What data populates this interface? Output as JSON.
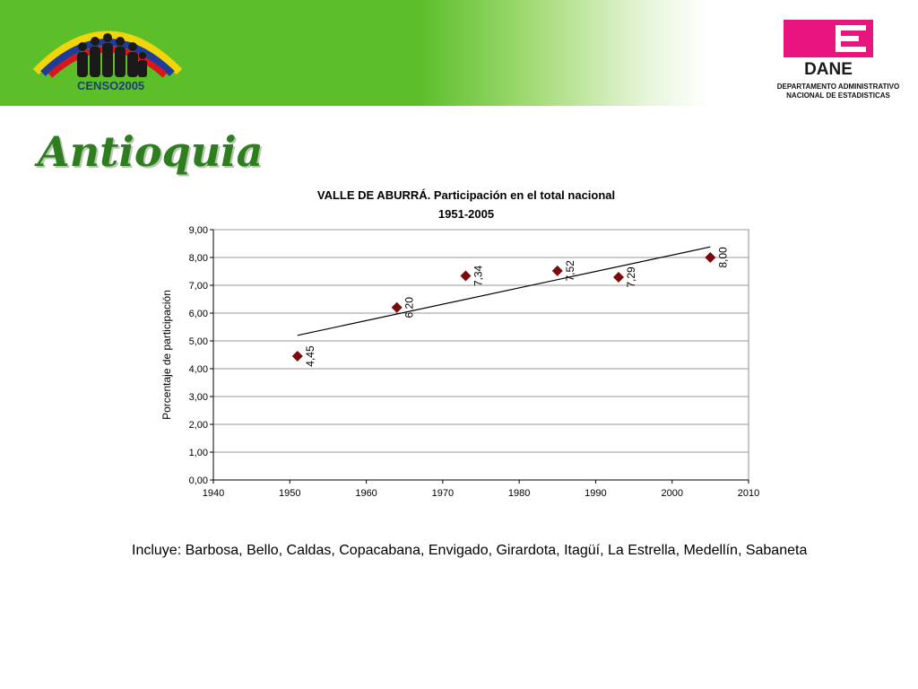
{
  "header": {
    "censo_logo_text": "CENSO2005",
    "dane_logo_text": "DANE",
    "dane_subtitle_line1": "DEPARTAMENTO ADMINISTRATIVO",
    "dane_subtitle_line2": "NACIONAL DE ESTADISTICAS"
  },
  "slide_title": "Antioquia",
  "chart_data": {
    "type": "scatter",
    "title": "VALLE DE ABURRÁ. Participación en el total nacional",
    "subtitle": "1951-2005",
    "xlabel": "",
    "ylabel": "Porcentaje de participación",
    "xlim": [
      1940,
      2010
    ],
    "ylim": [
      0,
      9
    ],
    "x_ticks": [
      "1940",
      "1950",
      "1960",
      "1970",
      "1980",
      "1990",
      "2000",
      "2010"
    ],
    "y_ticks": [
      "0,00",
      "1,00",
      "2,00",
      "3,00",
      "4,00",
      "5,00",
      "6,00",
      "7,00",
      "8,00",
      "9,00"
    ],
    "grid": "horizontal",
    "series": [
      {
        "points": [
          {
            "x": 1951,
            "y": 4.45,
            "label": "4,45"
          },
          {
            "x": 1964,
            "y": 6.2,
            "label": "6,20"
          },
          {
            "x": 1973,
            "y": 7.34,
            "label": "7,34"
          },
          {
            "x": 1985,
            "y": 7.52,
            "label": "7,52"
          },
          {
            "x": 1993,
            "y": 7.29,
            "label": "7,29"
          },
          {
            "x": 2005,
            "y": 8.0,
            "label": "8,00"
          }
        ],
        "color": "#7b0a0a",
        "marker": "diamond"
      }
    ],
    "trendline": {
      "x": [
        1951,
        2005
      ],
      "y": [
        5.2,
        8.38
      ],
      "color": "#000000"
    }
  },
  "note": "Incluye: Barbosa, Bello, Caldas, Copacabana, Envigado, Girardota, Itagüí, La Estrella, Medellín, Sabaneta"
}
